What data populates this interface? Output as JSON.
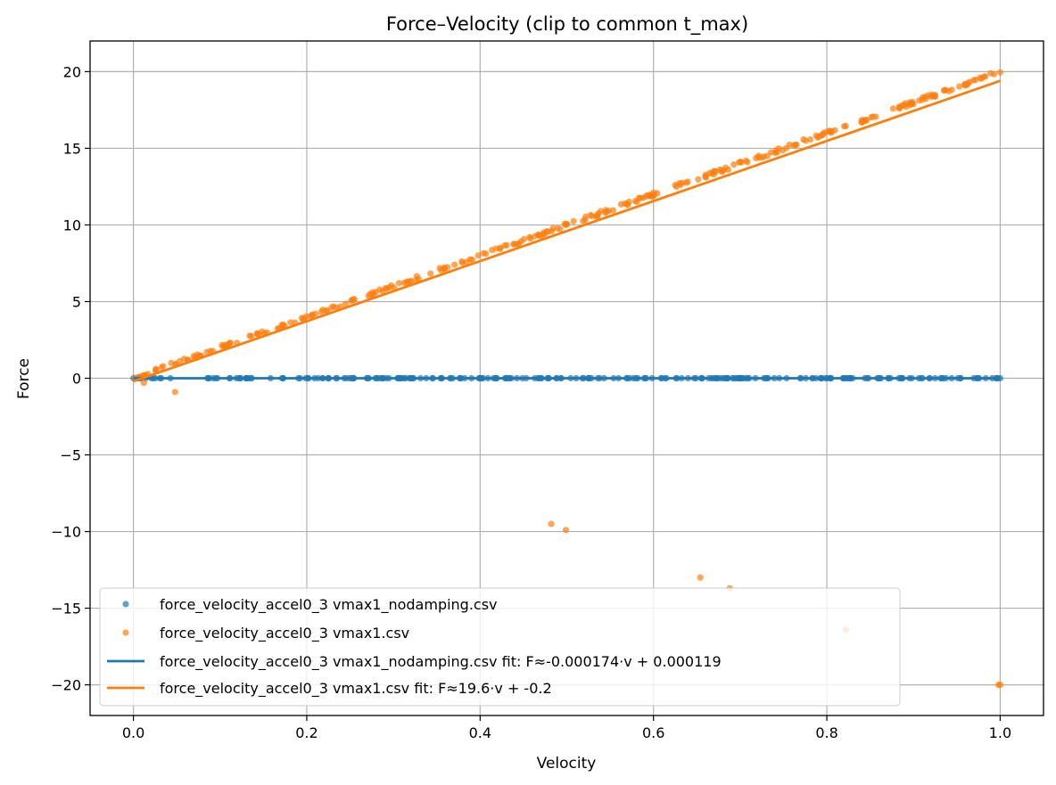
{
  "chart_data": {
    "type": "scatter",
    "title": "Force–Velocity (clip to common t_max)",
    "xlabel": "Velocity",
    "ylabel": "Force",
    "xlim": [
      -0.05,
      1.05
    ],
    "ylim": [
      -22,
      22
    ],
    "x_ticks": [
      0.0,
      0.2,
      0.4,
      0.6,
      0.8,
      1.0
    ],
    "x_tick_labels": [
      "0.0",
      "0.2",
      "0.4",
      "0.6",
      "0.8",
      "1.0"
    ],
    "y_ticks": [
      -20,
      -15,
      -10,
      -5,
      0,
      5,
      10,
      15,
      20
    ],
    "y_tick_labels": [
      "−20",
      "−15",
      "−10",
      "−5",
      "0",
      "5",
      "10",
      "15",
      "20"
    ],
    "grid": true,
    "legend_position": "lower-left",
    "colors": {
      "blue": "#1f77b4",
      "orange": "#ff7f0e"
    },
    "series": [
      {
        "name": "force_velocity_accel0_3 vmax1_nodamping.csv",
        "kind": "scatter",
        "color": "#1f77b4",
        "x_range": [
          0.0,
          1.0
        ],
        "y_constant": 0.0,
        "point_count": 260
      },
      {
        "name": "force_velocity_accel0_3 vmax1.csv",
        "kind": "scatter",
        "color": "#ff7f0e",
        "x_range": [
          0.0,
          1.0
        ],
        "y_slope": 20.0,
        "y_intercept": 0.0,
        "point_count": 300,
        "outliers": [
          {
            "x": 0.012,
            "y": -0.3
          },
          {
            "x": 0.048,
            "y": -0.9
          },
          {
            "x": 0.482,
            "y": -9.5
          },
          {
            "x": 0.499,
            "y": -9.9
          },
          {
            "x": 0.654,
            "y": -13.0
          },
          {
            "x": 0.688,
            "y": -13.7
          },
          {
            "x": 0.822,
            "y": -16.4
          },
          {
            "x": 0.998,
            "y": -20.0
          },
          {
            "x": 1.0,
            "y": -20.0
          }
        ]
      },
      {
        "name": "force_velocity_accel0_3 vmax1_nodamping.csv fit: F≈-0.000174·v + 0.000119",
        "kind": "line",
        "color": "#1f77b4",
        "slope": -0.000174,
        "intercept": 0.000119
      },
      {
        "name": "force_velocity_accel0_3 vmax1.csv fit: F≈19.6·v + -0.2",
        "kind": "line",
        "color": "#ff7f0e",
        "slope": 19.6,
        "intercept": -0.2
      }
    ]
  }
}
